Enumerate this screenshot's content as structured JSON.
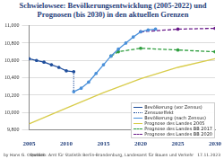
{
  "chart_data": {
    "type": "line",
    "title": "Schwielowsee: Bevölkerungsentwicklung (2005-2022) und Prognosen (bis 2030) in den aktuellen Grenzen",
    "footer_left": "by Hans G. Oberlack",
    "footer_center": "Quellen: Amt für Statistik Berlin-Brandenburg, Landesamt für Bauen und Verkehr",
    "footer_right": "17.11.2023",
    "series": [
      {
        "name": "Bevölkerung (vor Zensus)",
        "color": "#1f4e9c",
        "line_style": "solid",
        "marker": "circle",
        "x": [
          2005,
          2006,
          2007,
          2008,
          2009,
          2010,
          2011
        ],
        "values": [
          10620,
          10600,
          10580,
          10550,
          10520,
          10480,
          10470
        ]
      },
      {
        "name": "Zensuseffekt",
        "color": "#1f4e9c",
        "line_style": "dotted",
        "marker": "none",
        "x": [
          2011,
          2011
        ],
        "values": [
          10470,
          10240
        ]
      },
      {
        "name": "Bevölkerung (nach Zensus)",
        "color": "#4a90d9",
        "line_style": "solid",
        "marker": "circle",
        "x": [
          2011,
          2012,
          2013,
          2014,
          2015,
          2016,
          2017,
          2018,
          2019,
          2020,
          2021,
          2022
        ],
        "values": [
          10240,
          10280,
          10350,
          10450,
          10550,
          10650,
          10730,
          10800,
          10870,
          10930,
          10950,
          10960
        ]
      },
      {
        "name": "Prognose des Landes 2005",
        "color": "#d8cc4a",
        "line_style": "solid",
        "marker": "none",
        "x": [
          2005,
          2010,
          2015,
          2020,
          2025,
          2030
        ],
        "values": [
          9870,
          10050,
          10230,
          10390,
          10520,
          10620
        ]
      },
      {
        "name": "Prognose des Landes BB 2017",
        "color": "#2e9e3e",
        "line_style": "dashed",
        "marker": "circle",
        "x": [
          2016,
          2017,
          2020,
          2025,
          2030
        ],
        "values": [
          10650,
          10700,
          10740,
          10720,
          10700
        ]
      },
      {
        "name": "Prognose des Landes BB 2020",
        "color": "#6a1b8a",
        "line_style": "dashed",
        "marker": "circle",
        "x": [
          2020,
          2025,
          2030
        ],
        "values": [
          10930,
          10960,
          10970
        ]
      }
    ],
    "xlim": [
      2005,
      2030
    ],
    "xticks": [
      2005,
      2010,
      2015,
      2020,
      2025,
      2030
    ],
    "ylim": [
      9800,
      11000
    ],
    "yticks": [
      {
        "value": 9800,
        "label": "9,800"
      },
      {
        "value": 10000,
        "label": "10,000"
      },
      {
        "value": 10200,
        "label": "10,200"
      },
      {
        "value": 10400,
        "label": "10,400"
      },
      {
        "value": 10600,
        "label": "10,600"
      },
      {
        "value": 10800,
        "label": "10,800"
      },
      {
        "value": 11000,
        "label": "11,000"
      }
    ],
    "grid": true,
    "legend": "lower right"
  }
}
